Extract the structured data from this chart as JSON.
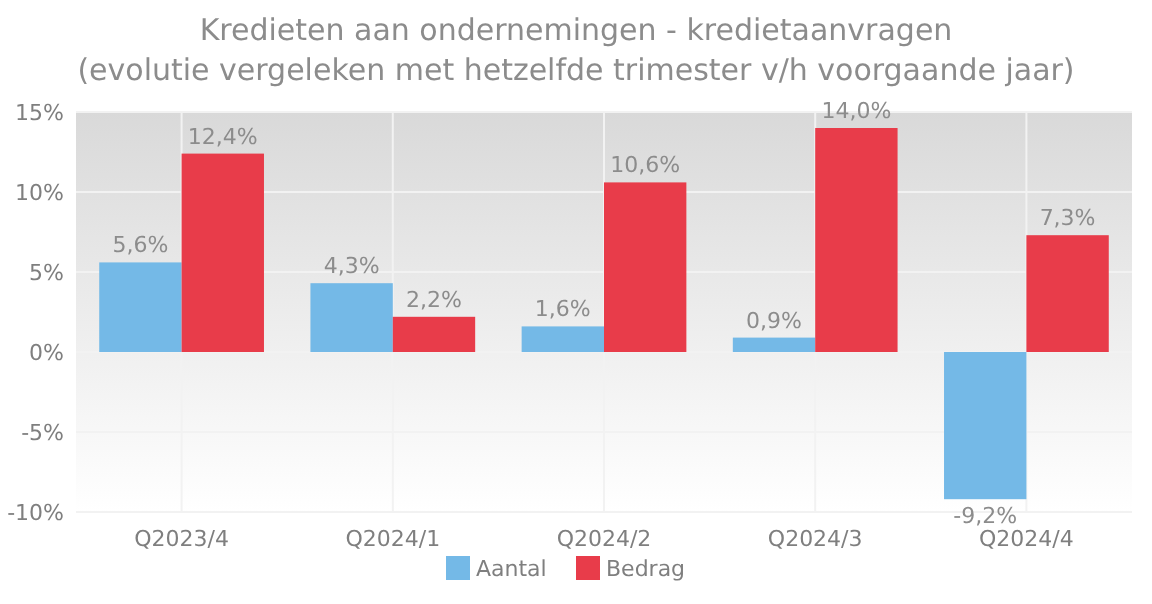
{
  "chart_data": {
    "type": "bar",
    "title": "Kredieten aan ondernemingen - kredietaanvragen",
    "subtitle": "(evolutie vergeleken met hetzelfde trimester v/h voorgaande jaar)",
    "categories": [
      "Q2023/4",
      "Q2024/1",
      "Q2024/2",
      "Q2024/3",
      "Q2024/4"
    ],
    "series": [
      {
        "name": "Aantal",
        "color": "#74b9e7",
        "values": [
          5.6,
          4.3,
          1.6,
          0.9,
          -9.2
        ],
        "value_labels": [
          "5,6%",
          "4,3%",
          "1,6%",
          "0,9%",
          "-9,2%"
        ]
      },
      {
        "name": "Bedrag",
        "color": "#e83c4a",
        "values": [
          12.4,
          2.2,
          10.6,
          14.0,
          7.3
        ],
        "value_labels": [
          "12,4%",
          "2,2%",
          "10,6%",
          "14,0%",
          "7,3%"
        ]
      }
    ],
    "ylim": [
      -10,
      15
    ],
    "yticks": [
      {
        "value": -10,
        "label": "-10%"
      },
      {
        "value": -5,
        "label": "-5%"
      },
      {
        "value": 0,
        "label": "0%"
      },
      {
        "value": 5,
        "label": "5%"
      },
      {
        "value": 10,
        "label": "10%"
      },
      {
        "value": 15,
        "label": "15%"
      }
    ],
    "grid": true,
    "legend": "bottom"
  }
}
